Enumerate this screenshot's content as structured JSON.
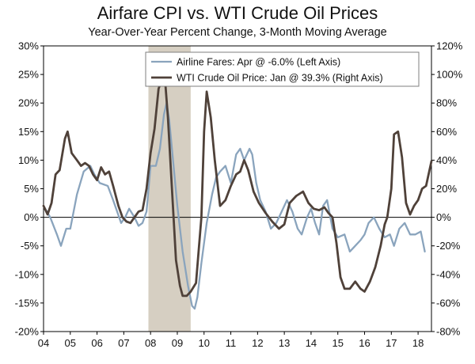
{
  "chart_data": {
    "type": "line",
    "title": "Airfare CPI vs. WTI Crude Oil Prices",
    "subtitle": "Year-Over-Year Percent Change, 3-Month Moving Average",
    "x_range": [
      2004.0,
      2018.5
    ],
    "x_ticks": [
      {
        "value": 2004,
        "label": "04"
      },
      {
        "value": 2005,
        "label": "05"
      },
      {
        "value": 2006,
        "label": "06"
      },
      {
        "value": 2007,
        "label": "07"
      },
      {
        "value": 2008,
        "label": "08"
      },
      {
        "value": 2009,
        "label": "09"
      },
      {
        "value": 2010,
        "label": "10"
      },
      {
        "value": 2011,
        "label": "11"
      },
      {
        "value": 2012,
        "label": "12"
      },
      {
        "value": 2013,
        "label": "13"
      },
      {
        "value": 2014,
        "label": "14"
      },
      {
        "value": 2015,
        "label": "15"
      },
      {
        "value": 2016,
        "label": "16"
      },
      {
        "value": 2017,
        "label": "17"
      },
      {
        "value": 2018,
        "label": "18"
      }
    ],
    "y_left": {
      "range": [
        -20,
        30
      ],
      "ticks": [
        30,
        25,
        20,
        15,
        10,
        5,
        0,
        -5,
        -10,
        -15,
        -20
      ],
      "labels": [
        "30%",
        "25%",
        "20%",
        "15%",
        "10%",
        "5%",
        "0%",
        "-5%",
        "-10%",
        "-15%",
        "-20%"
      ]
    },
    "y_right": {
      "range": [
        -80,
        120
      ],
      "ticks": [
        120,
        100,
        80,
        60,
        40,
        20,
        0,
        -20,
        -40,
        -60,
        -80
      ],
      "labels": [
        "120%",
        "100%",
        "80%",
        "60%",
        "40%",
        "20%",
        "0%",
        "-20%",
        "-40%",
        "-60%",
        "-80%"
      ]
    },
    "recession_band": {
      "start": 2007.92,
      "end": 2009.5
    },
    "colors": {
      "airfare": "#8aa4bd",
      "oil": "#4f4139",
      "recession": "#d6cfc2",
      "axis": "#000000"
    },
    "series": [
      {
        "name": "Airline Fares: Apr @ -6.0% (Left Axis)",
        "axis": "left",
        "x": [
          2004.0,
          2004.25,
          2004.5,
          2004.65,
          2004.85,
          2005.0,
          2005.25,
          2005.5,
          2005.75,
          2005.9,
          2006.1,
          2006.4,
          2006.6,
          2006.9,
          2007.05,
          2007.2,
          2007.4,
          2007.55,
          2007.7,
          2007.85,
          2008.0,
          2008.2,
          2008.35,
          2008.5,
          2008.6,
          2008.7,
          2008.8,
          2009.0,
          2009.2,
          2009.4,
          2009.55,
          2009.65,
          2009.75,
          2009.9,
          2010.1,
          2010.3,
          2010.45,
          2010.6,
          2010.8,
          2011.0,
          2011.2,
          2011.35,
          2011.5,
          2011.7,
          2011.8,
          2011.95,
          2012.1,
          2012.3,
          2012.5,
          2012.7,
          2012.9,
          2013.1,
          2013.3,
          2013.5,
          2013.65,
          2013.85,
          2014.0,
          2014.15,
          2014.3,
          2014.45,
          2014.6,
          2014.8,
          2015.0,
          2015.25,
          2015.45,
          2015.65,
          2015.85,
          2016.0,
          2016.15,
          2016.35,
          2016.55,
          2016.75,
          2016.95,
          2017.1,
          2017.3,
          2017.5,
          2017.7,
          2017.9,
          2018.1,
          2018.25
        ],
        "values": [
          2,
          0,
          -3,
          -5,
          -2,
          -2,
          4,
          8,
          9,
          7.5,
          6,
          5.5,
          3,
          -1,
          0,
          1.5,
          0,
          -1.5,
          -1,
          1,
          9,
          9,
          12,
          18,
          20,
          17,
          12,
          2,
          -6,
          -12,
          -15.5,
          -16,
          -14,
          -8,
          -1,
          4,
          7,
          8,
          9,
          6,
          11,
          12,
          10,
          12,
          11,
          6,
          3,
          1,
          -2,
          -1,
          1,
          3,
          1,
          -2,
          -3,
          0,
          1.5,
          -1,
          -3,
          2,
          3,
          -2,
          -3.5,
          -3,
          -6,
          -5,
          -4,
          -3,
          -1,
          0,
          -2,
          -3.5,
          -3,
          -5,
          -2,
          -1,
          -3,
          -3,
          -2.5,
          -6
        ]
      },
      {
        "name": "WTI Crude Oil Price: Jan @ 39.3% (Right Axis)",
        "axis": "right",
        "x": [
          2004.0,
          2004.15,
          2004.3,
          2004.45,
          2004.6,
          2004.8,
          2004.9,
          2005.05,
          2005.25,
          2005.4,
          2005.55,
          2005.7,
          2005.85,
          2006.0,
          2006.15,
          2006.3,
          2006.45,
          2006.6,
          2006.8,
          2006.95,
          2007.1,
          2007.25,
          2007.4,
          2007.55,
          2007.7,
          2007.85,
          2008.0,
          2008.15,
          2008.3,
          2008.45,
          2008.55,
          2008.65,
          2008.8,
          2008.95,
          2009.1,
          2009.2,
          2009.35,
          2009.5,
          2009.7,
          2009.9,
          2010.0,
          2010.1,
          2010.25,
          2010.4,
          2010.6,
          2010.8,
          2011.0,
          2011.2,
          2011.35,
          2011.5,
          2011.65,
          2011.85,
          2012.05,
          2012.3,
          2012.55,
          2012.8,
          2013.0,
          2013.2,
          2013.45,
          2013.7,
          2013.9,
          2014.1,
          2014.3,
          2014.5,
          2014.65,
          2014.8,
          2014.95,
          2015.1,
          2015.25,
          2015.45,
          2015.65,
          2015.85,
          2016.0,
          2016.2,
          2016.4,
          2016.6,
          2016.75,
          2016.85,
          2017.0,
          2017.1,
          2017.25,
          2017.4,
          2017.55,
          2017.7,
          2017.85,
          2018.0,
          2018.15,
          2018.3,
          2018.5
        ],
        "values": [
          8,
          2,
          10,
          30,
          33,
          55,
          60,
          45,
          40,
          36,
          38,
          36,
          30,
          26,
          35,
          30,
          32,
          22,
          8,
          0,
          -3,
          -4,
          0,
          4,
          5,
          20,
          45,
          62,
          90,
          98,
          94,
          70,
          20,
          -30,
          -48,
          -55,
          -55,
          -52,
          -46,
          0,
          60,
          88,
          70,
          40,
          8,
          12,
          22,
          30,
          32,
          40,
          33,
          18,
          10,
          3,
          -3,
          -8,
          -5,
          10,
          15,
          18,
          10,
          6,
          5,
          7,
          3,
          0,
          -18,
          -42,
          -50,
          -50,
          -45,
          -50,
          -52,
          -45,
          -35,
          -20,
          -5,
          0,
          20,
          58,
          60,
          42,
          10,
          2,
          8,
          12,
          20,
          22,
          39.3
        ]
      }
    ]
  }
}
